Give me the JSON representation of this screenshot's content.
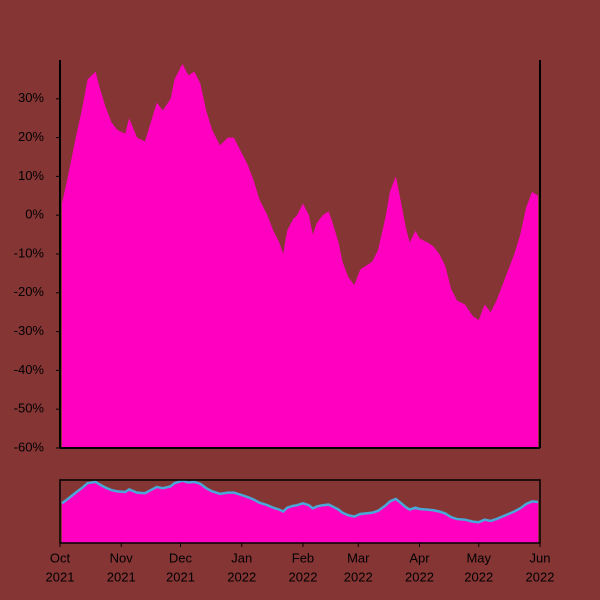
{
  "chart_data": {
    "type": "area",
    "color": "#ff00c0",
    "line_color": "#4aa8d8",
    "x": [
      "2021-10-02",
      "2021-10-05",
      "2021-10-09",
      "2021-10-12",
      "2021-10-15",
      "2021-10-19",
      "2021-10-21",
      "2021-10-24",
      "2021-10-27",
      "2021-10-30",
      "2021-11-03",
      "2021-11-05",
      "2021-11-09",
      "2021-11-13",
      "2021-11-16",
      "2021-11-19",
      "2021-11-22",
      "2021-11-26",
      "2021-11-28",
      "2021-12-02",
      "2021-12-05",
      "2021-12-08",
      "2021-12-11",
      "2021-12-14",
      "2021-12-17",
      "2021-12-21",
      "2021-12-25",
      "2021-12-28",
      "2021-12-31",
      "2022-01-04",
      "2022-01-07",
      "2022-01-10",
      "2022-01-14",
      "2022-01-17",
      "2022-01-20",
      "2022-01-22",
      "2022-01-24",
      "2022-01-27",
      "2022-01-29",
      "2022-02-01",
      "2022-02-04",
      "2022-02-06",
      "2022-02-08",
      "2022-02-11",
      "2022-02-14",
      "2022-02-16",
      "2022-02-19",
      "2022-02-21",
      "2022-02-24",
      "2022-02-27",
      "2022-03-02",
      "2022-03-05",
      "2022-03-08",
      "2022-03-11",
      "2022-03-15",
      "2022-03-17",
      "2022-03-20",
      "2022-03-22",
      "2022-03-25",
      "2022-03-27",
      "2022-03-30",
      "2022-04-01",
      "2022-04-05",
      "2022-04-08",
      "2022-04-11",
      "2022-04-14",
      "2022-04-17",
      "2022-04-20",
      "2022-04-24",
      "2022-04-28",
      "2022-05-01",
      "2022-05-04",
      "2022-05-07",
      "2022-05-10",
      "2022-05-13",
      "2022-05-16",
      "2022-05-19",
      "2022-05-22",
      "2022-05-25",
      "2022-05-28",
      "2022-05-31"
    ],
    "values": [
      3,
      10,
      20,
      27,
      35,
      37,
      33,
      28,
      24,
      22,
      21,
      25,
      20,
      19,
      24,
      29,
      27,
      30,
      35,
      39,
      36,
      37,
      34,
      27,
      22,
      18,
      20,
      20,
      17,
      13,
      9,
      4,
      0,
      -4,
      -7,
      -10,
      -4,
      -1,
      0,
      3,
      0,
      -5,
      -2,
      0,
      1,
      -2,
      -7,
      -12,
      -16,
      -18,
      -14,
      -13,
      -12,
      -9,
      0,
      6,
      10,
      5,
      -3,
      -7,
      -4,
      -6,
      -7,
      -8,
      -10,
      -13,
      -19,
      -22,
      -23,
      -26,
      -27,
      -23,
      -25,
      -22,
      -18,
      -14,
      -10,
      -5,
      2,
      6,
      5
    ],
    "xlim": [
      "2021-10-01",
      "2022-06-01"
    ],
    "ylim": [
      -60,
      40
    ],
    "yticks": [
      {
        "value": -60,
        "label": "-60%"
      },
      {
        "value": -50,
        "label": "-50%"
      },
      {
        "value": -40,
        "label": "-40%"
      },
      {
        "value": -30,
        "label": "-30%"
      },
      {
        "value": -20,
        "label": "-20%"
      },
      {
        "value": -10,
        "label": "-10%"
      },
      {
        "value": 0,
        "label": "0%"
      },
      {
        "value": 10,
        "label": "10%"
      },
      {
        "value": 20,
        "label": "20%"
      },
      {
        "value": 30,
        "label": "30%"
      }
    ],
    "xticks": [
      {
        "value": "2021-10-01",
        "label": [
          "Oct",
          "2021"
        ]
      },
      {
        "value": "2021-11-01",
        "label": [
          "Nov",
          "2021"
        ]
      },
      {
        "value": "2021-12-01",
        "label": [
          "Dec",
          "2021"
        ]
      },
      {
        "value": "2022-01-01",
        "label": [
          "Jan",
          "2022"
        ]
      },
      {
        "value": "2022-02-01",
        "label": [
          "Feb",
          "2022"
        ]
      },
      {
        "value": "2022-03-01",
        "label": [
          "Mar",
          "2022"
        ]
      },
      {
        "value": "2022-04-01",
        "label": [
          "Apr",
          "2022"
        ]
      },
      {
        "value": "2022-05-01",
        "label": [
          "May",
          "2022"
        ]
      },
      {
        "value": "2022-06-01",
        "label": [
          "Jun",
          "2022"
        ]
      }
    ]
  }
}
